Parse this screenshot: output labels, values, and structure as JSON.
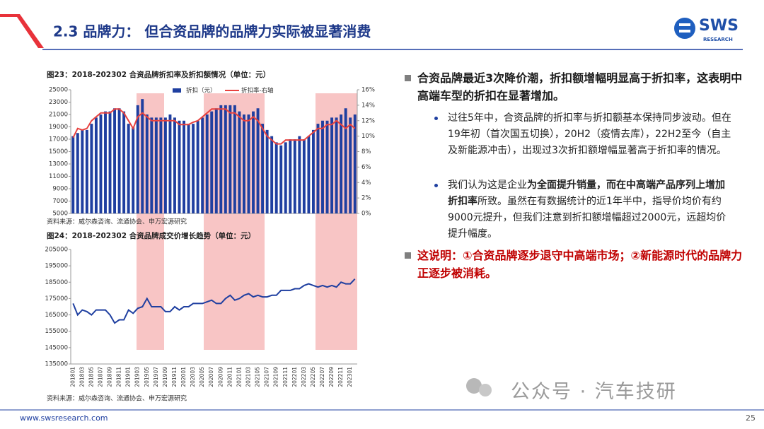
{
  "header": {
    "title": "2.3 品牌力： 但合资品牌的品牌力实际被显著消费",
    "logo": "SWS",
    "logo_sub": "RESEARCH"
  },
  "chart_data": [
    {
      "type": "bar",
      "title": "图23：2018-202302 合资品牌折扣率及折扣额情况（单位：元）",
      "source": "资料来源：威尔森咨询、流通协会、申万宏源研究",
      "series": [
        {
          "name": "折扣（元）",
          "color": "#1f3fa0",
          "values": [
            17500,
            18000,
            18500,
            18500,
            19500,
            20500,
            21000,
            21500,
            21500,
            22000,
            22000,
            21500,
            19500,
            19000,
            22500,
            23500,
            21000,
            20500,
            20500,
            20500,
            20500,
            21000,
            20500,
            20000,
            20000,
            19500,
            19500,
            20000,
            20500,
            21000,
            21500,
            22000,
            22500,
            22500,
            22500,
            22500,
            21500,
            21000,
            21000,
            21500,
            22000,
            19500,
            18500,
            17500,
            16500,
            16000,
            16500,
            17000,
            17000,
            17500,
            17000,
            17500,
            18500,
            19500,
            20000,
            20000,
            20500,
            20500,
            21000,
            22000,
            20500,
            21000
          ]
        },
        {
          "name": "折扣率-右轴",
          "color": "#e8423f",
          "type": "line",
          "axis": "y2",
          "values": [
            9.8,
            11,
            10.8,
            11,
            12,
            12.5,
            13,
            13,
            13,
            13.5,
            13.5,
            13,
            12,
            11,
            12.5,
            13,
            12.5,
            12,
            12,
            12,
            12,
            12,
            12,
            11.5,
            11.5,
            11.5,
            11.8,
            12,
            12.5,
            13,
            13.5,
            13.5,
            13.5,
            13.5,
            13,
            13,
            12.5,
            12,
            12,
            12.5,
            12,
            11,
            10,
            9.5,
            9,
            9,
            9.5,
            9.5,
            9.5,
            9.5,
            9.5,
            10,
            10.5,
            11,
            11,
            11.5,
            11.5,
            12,
            11.5,
            11,
            11.5,
            11
          ]
        }
      ],
      "ylim": [
        5000,
        25000
      ],
      "yticks": [
        5000,
        7000,
        9000,
        11000,
        13000,
        15000,
        17000,
        19000,
        21000,
        23000,
        25000
      ],
      "y2lim": [
        0,
        16
      ],
      "y2ticks": [
        {
          "value": 0,
          "label": "0%"
        },
        {
          "value": 2,
          "label": "2%"
        },
        {
          "value": 4,
          "label": "4%"
        },
        {
          "value": 6,
          "label": "6%"
        },
        {
          "value": 8,
          "label": "8%"
        },
        {
          "value": 10,
          "label": "10%"
        },
        {
          "value": 12,
          "label": "12%"
        },
        {
          "value": 14,
          "label": "14%"
        },
        {
          "value": 16,
          "label": "16%"
        }
      ]
    },
    {
      "type": "line",
      "title": "图24：2018-202302 合资品牌成交价增长趋势（单位：元）",
      "source": "资料来源：威尔森咨询、流通协会、申万宏源研究",
      "color": "#1f3fa0",
      "categories": [
        "201801",
        null,
        "201803",
        null,
        "201805",
        null,
        "201807",
        null,
        "201809",
        null,
        "201811",
        null,
        "201901",
        null,
        "201903",
        null,
        "201905",
        null,
        "201907",
        null,
        "201909",
        null,
        "201911",
        null,
        "202001",
        null,
        "202003",
        null,
        "202005",
        null,
        "202007",
        null,
        "202009",
        null,
        "202011",
        null,
        "202101",
        null,
        "202103",
        null,
        "202105",
        null,
        "202107",
        null,
        "202109",
        null,
        "202111",
        null,
        "202201",
        null,
        "202203",
        null,
        "202205",
        null,
        "202207",
        null,
        "202209",
        null,
        "202211",
        null,
        "202301",
        null
      ],
      "values": [
        172000,
        165000,
        168000,
        167000,
        165000,
        168000,
        168000,
        168000,
        165000,
        160000,
        162000,
        162000,
        168000,
        166000,
        169000,
        170000,
        175000,
        170000,
        170000,
        170000,
        167000,
        167000,
        170000,
        168000,
        170000,
        170000,
        172000,
        172000,
        172000,
        173000,
        174000,
        172000,
        172000,
        175000,
        177000,
        174000,
        175000,
        177000,
        178000,
        176000,
        177000,
        176000,
        176000,
        177000,
        177000,
        180000,
        180000,
        180000,
        181000,
        181000,
        183000,
        184000,
        183000,
        182000,
        183000,
        182000,
        183000,
        182000,
        185000,
        184000,
        184000,
        187000
      ],
      "ylim": [
        135000,
        205000
      ],
      "yticks": [
        135000,
        145000,
        155000,
        165000,
        175000,
        185000,
        195000,
        205000
      ]
    }
  ],
  "text": {
    "bullet1": "合资品牌最近3次降价潮，折扣额增幅明显高于折扣率，这表明中高端车型的折扣在显著增加。",
    "sub1": "过往5年中，合资品牌的折扣率与折扣额基本保持同步波动。但在19年初（首次国五切换），20H2（疫情去库），22H2至今（自主及新能源冲击），出现过3次折扣额增幅显著高于折扣率的情况。",
    "sub2": [
      "我们认为这是企业",
      "为全面提升销量，而在中高端产品序列上增加折扣率",
      "所致。虽然在有数据统计的近1年半中，指导价均价有约9000元提升，但我们注意到折扣额增幅超过2000元，远超均价提升幅度。"
    ],
    "conclusion": "这说明：①合资品牌逐步退守中高端市场；②新能源时代的品牌力正逐步被消耗。"
  },
  "watermark": "公众号 · 汽车技研",
  "footer": {
    "url": "www.swsresearch.com",
    "page": 25
  }
}
